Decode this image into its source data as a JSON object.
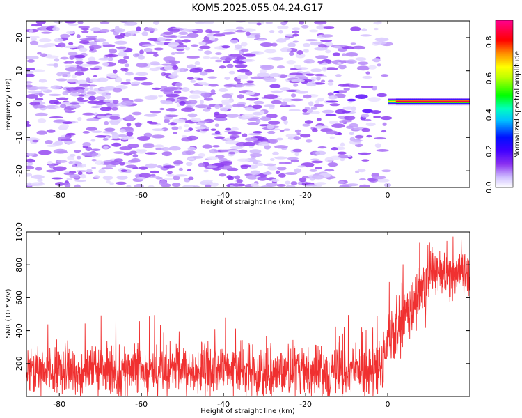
{
  "title": "KOM5.2025.055.04.24.G17",
  "chart_data": [
    {
      "type": "heatmap",
      "xlabel": "Height of straight line (km)",
      "ylabel": "Frequency (Hz)",
      "xlim": [
        -88,
        20
      ],
      "ylim": [
        -25,
        25
      ],
      "x_ticks": [
        -80,
        -60,
        -40,
        -20,
        0
      ],
      "y_ticks": [
        -20,
        -10,
        0,
        10,
        20
      ],
      "colorbar": {
        "label": "Normalized spectral amplitude",
        "range": [
          0.0,
          0.92
        ],
        "ticks": [
          "0.0",
          "0.2",
          "0.4",
          "0.6",
          "0.8"
        ],
        "colormap": [
          "#ffffff",
          "#d8c8ff",
          "#9040f0",
          "#5000ff",
          "#0000ff",
          "#00ffff",
          "#00ff00",
          "#ffff00",
          "#ff8000",
          "#ff0000",
          "#ff0080"
        ]
      },
      "features": [
        {
          "description": "low-amplitude speckle noise across all frequencies",
          "x_range": [
            -88,
            -2
          ],
          "amplitude": [
            0.05,
            0.2
          ]
        },
        {
          "description": "strong narrow band near 0 Hz",
          "x_range": [
            0,
            20
          ],
          "frequency_hz": [
            0.5,
            1
          ],
          "peak_amplitude": 0.92
        }
      ]
    },
    {
      "type": "line",
      "xlabel": "Height of straight line (km)",
      "ylabel": "SNR (10 * v/v)",
      "xlim": [
        -88,
        20
      ],
      "ylim": [
        0,
        1000
      ],
      "x_ticks": [
        -80,
        -60,
        -40,
        -20,
        0
      ],
      "y_ticks": [
        200,
        400,
        600,
        800,
        1000
      ],
      "color": "#f03030",
      "segments": [
        {
          "x_range": [
            -88,
            -1
          ],
          "mean": 155,
          "min": 0,
          "max": 500
        },
        {
          "x_range": [
            -1,
            10
          ],
          "mean_start": 250,
          "mean_end": 700,
          "min": 230,
          "max": 940
        },
        {
          "x_range": [
            10,
            20
          ],
          "mean": 750,
          "min": 480,
          "max": 980
        }
      ]
    }
  ]
}
